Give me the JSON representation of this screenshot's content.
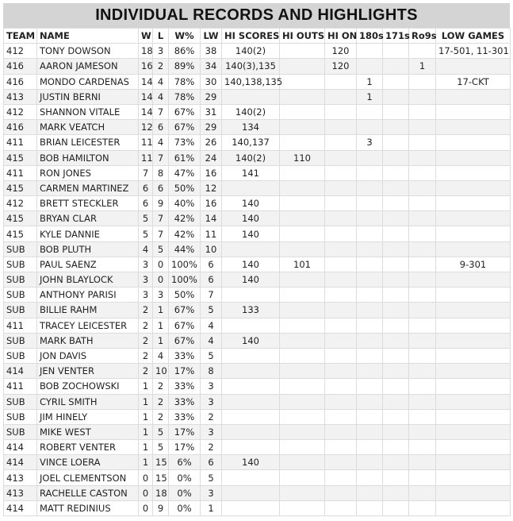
{
  "header": {
    "title": "INDIVIDUAL RECORDS AND HIGHLIGHTS"
  },
  "table": {
    "columns": [
      "TEAM",
      "NAME",
      "W",
      "L",
      "W%",
      "LW",
      "HI SCORES",
      "HI OUTS",
      "HI ON",
      "180s",
      "171s",
      "Ro9s",
      "LOW GAMES"
    ],
    "rows": [
      [
        "412",
        "TONY DOWSON",
        18,
        3,
        "86%",
        38,
        "140(2)",
        null,
        120,
        null,
        null,
        null,
        "17-501, 11-301"
      ],
      [
        "416",
        "AARON JAMESON",
        16,
        2,
        "89%",
        34,
        "140(3),135",
        null,
        120,
        null,
        null,
        1,
        null
      ],
      [
        "416",
        "MONDO CARDENAS",
        14,
        4,
        "78%",
        30,
        "140,138,135",
        null,
        null,
        1,
        null,
        null,
        "17-CKT"
      ],
      [
        "413",
        "JUSTIN BERNI",
        14,
        4,
        "78%",
        29,
        null,
        null,
        null,
        1,
        null,
        null,
        null
      ],
      [
        "412",
        "SHANNON VITALE",
        14,
        7,
        "67%",
        31,
        "140(2)",
        null,
        null,
        null,
        null,
        null,
        null
      ],
      [
        "416",
        "MARK VEATCH",
        12,
        6,
        "67%",
        29,
        "134",
        null,
        null,
        null,
        null,
        null,
        null
      ],
      [
        "411",
        "BRIAN LEICESTER",
        11,
        4,
        "73%",
        26,
        "140,137",
        null,
        null,
        3,
        null,
        null,
        null
      ],
      [
        "415",
        "BOB HAMILTON",
        11,
        7,
        "61%",
        24,
        "140(2)",
        110,
        null,
        null,
        null,
        null,
        null
      ],
      [
        "411",
        "RON JONES",
        7,
        8,
        "47%",
        16,
        "141",
        null,
        null,
        null,
        null,
        null,
        null
      ],
      [
        "415",
        "CARMEN MARTINEZ",
        6,
        6,
        "50%",
        12,
        null,
        null,
        null,
        null,
        null,
        null,
        null
      ],
      [
        "412",
        "BRETT STECKLER",
        6,
        9,
        "40%",
        16,
        "140",
        null,
        null,
        null,
        null,
        null,
        null
      ],
      [
        "415",
        "BRYAN CLAR",
        5,
        7,
        "42%",
        14,
        "140",
        null,
        null,
        null,
        null,
        null,
        null
      ],
      [
        "415",
        "KYLE DANNIE",
        5,
        7,
        "42%",
        11,
        "140",
        null,
        null,
        null,
        null,
        null,
        null
      ],
      [
        "SUB",
        "BOB PLUTH",
        4,
        5,
        "44%",
        10,
        null,
        null,
        null,
        null,
        null,
        null,
        null
      ],
      [
        "SUB",
        "PAUL SAENZ",
        3,
        0,
        "100%",
        6,
        "140",
        101,
        null,
        null,
        null,
        null,
        "9-301"
      ],
      [
        "SUB",
        "JOHN BLAYLOCK",
        3,
        0,
        "100%",
        6,
        "140",
        null,
        null,
        null,
        null,
        null,
        null
      ],
      [
        "SUB",
        "ANTHONY PARISI",
        3,
        3,
        "50%",
        7,
        null,
        null,
        null,
        null,
        null,
        null,
        null
      ],
      [
        "SUB",
        "BILLIE RAHM",
        2,
        1,
        "67%",
        5,
        "133",
        null,
        null,
        null,
        null,
        null,
        null
      ],
      [
        "411",
        "TRACEY LEICESTER",
        2,
        1,
        "67%",
        4,
        null,
        null,
        null,
        null,
        null,
        null,
        null
      ],
      [
        "SUB",
        "MARK BATH",
        2,
        1,
        "67%",
        4,
        "140",
        null,
        null,
        null,
        null,
        null,
        null
      ],
      [
        "SUB",
        "JON DAVIS",
        2,
        4,
        "33%",
        5,
        null,
        null,
        null,
        null,
        null,
        null,
        null
      ],
      [
        "414",
        "JEN VENTER",
        2,
        10,
        "17%",
        8,
        null,
        null,
        null,
        null,
        null,
        null,
        null
      ],
      [
        "411",
        "BOB ZOCHOWSKI",
        1,
        2,
        "33%",
        3,
        null,
        null,
        null,
        null,
        null,
        null,
        null
      ],
      [
        "SUB",
        "CYRIL SMITH",
        1,
        2,
        "33%",
        3,
        null,
        null,
        null,
        null,
        null,
        null,
        null
      ],
      [
        "SUB",
        "JIM HINELY",
        1,
        2,
        "33%",
        2,
        null,
        null,
        null,
        null,
        null,
        null,
        null
      ],
      [
        "SUB",
        "MIKE WEST",
        1,
        5,
        "17%",
        3,
        null,
        null,
        null,
        null,
        null,
        null,
        null
      ],
      [
        "414",
        "ROBERT VENTER",
        1,
        5,
        "17%",
        2,
        null,
        null,
        null,
        null,
        null,
        null,
        null
      ],
      [
        "414",
        "VINCE LOERA",
        1,
        15,
        "6%",
        6,
        "140",
        null,
        null,
        null,
        null,
        null,
        null
      ],
      [
        "413",
        "JOEL CLEMENTSON",
        0,
        15,
        "0%",
        5,
        null,
        null,
        null,
        null,
        null,
        null,
        null
      ],
      [
        "413",
        "RACHELLE CASTON",
        0,
        18,
        "0%",
        3,
        null,
        null,
        null,
        null,
        null,
        null,
        null
      ],
      [
        "414",
        "MATT REDINIUS",
        0,
        9,
        "0%",
        1,
        null,
        null,
        null,
        null,
        null,
        null,
        null
      ]
    ]
  }
}
